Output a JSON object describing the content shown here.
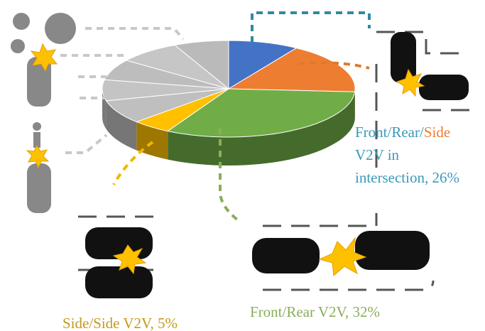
{
  "chart_data": {
    "type": "pie",
    "values": [
      9,
      17,
      32,
      5,
      8,
      7,
      7,
      8,
      7
    ],
    "colors": [
      "#4472c4",
      "#ed7d31",
      "#70ad47",
      "#ffc000",
      "#bfbfbf",
      "#c4c4c4",
      "#bdbdbd",
      "#c6c6c6",
      "#bababa"
    ],
    "annotations": [
      {
        "parts": [
          {
            "text": "Front/Rear/",
            "color": "#3a9ab8"
          },
          {
            "text": "Side",
            "color": "#ed7d31"
          }
        ],
        "lines": [
          "V2V in",
          "intersection, 26%"
        ],
        "color": "#3a9ab8"
      },
      {
        "text": "Front/Rear V2V, 32%",
        "color": "#8aae5a"
      },
      {
        "text": "Side/Side V2V, 5%",
        "color": "#c49a1a"
      }
    ]
  }
}
